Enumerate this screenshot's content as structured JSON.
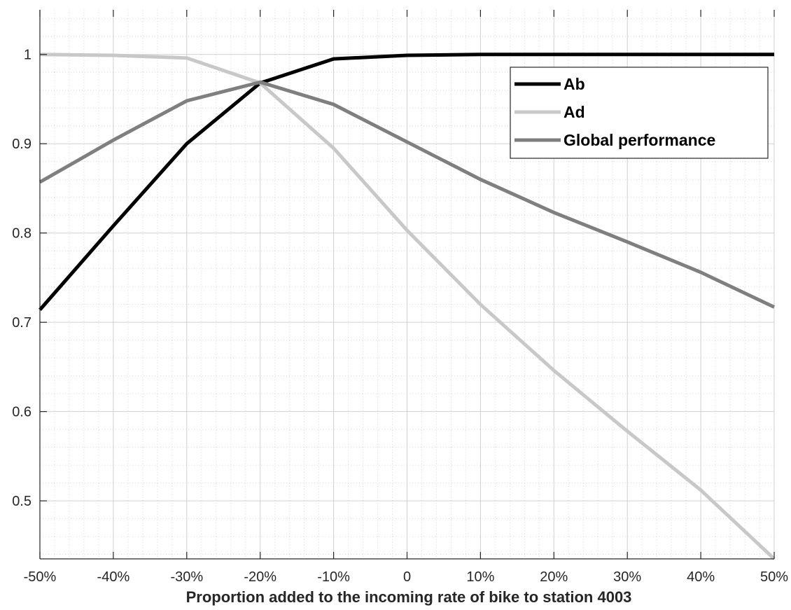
{
  "chart_data": {
    "type": "line",
    "title": "",
    "xlabel": "Proportion added to the incoming rate of bike to station 4003",
    "ylabel": "",
    "x": [
      -50,
      -40,
      -30,
      -20,
      -10,
      0,
      10,
      20,
      30,
      40,
      50
    ],
    "x_tick_labels": [
      "-50%",
      "-40%",
      "-30%",
      "-20%",
      "-10%",
      "0",
      "10%",
      "20%",
      "30%",
      "40%",
      "50%"
    ],
    "xlim": [
      -50,
      50
    ],
    "y_ticks": [
      0.5,
      0.6,
      0.7,
      0.8,
      0.9,
      1
    ],
    "y_tick_labels": [
      "0.5",
      "0.6",
      "0.7",
      "0.8",
      "0.9",
      "1"
    ],
    "ylim": [
      0.435,
      1.05
    ],
    "grid": true,
    "minor_grid": true,
    "legend_position": "top-right",
    "series": [
      {
        "name": "Ab",
        "color": "#000000",
        "values": [
          0.714,
          0.808,
          0.9,
          0.968,
          0.995,
          0.999,
          1.0,
          1.0,
          1.0,
          1.0,
          1.0
        ]
      },
      {
        "name": "Ad",
        "color": "#c8c8c8",
        "values": [
          1.0,
          0.999,
          0.996,
          0.968,
          0.895,
          0.803,
          0.72,
          0.646,
          0.578,
          0.512,
          0.435
        ]
      },
      {
        "name": "Global performance",
        "color": "#7f7f7f",
        "values": [
          0.857,
          0.904,
          0.948,
          0.969,
          0.944,
          0.902,
          0.86,
          0.823,
          0.79,
          0.756,
          0.717
        ]
      }
    ]
  }
}
